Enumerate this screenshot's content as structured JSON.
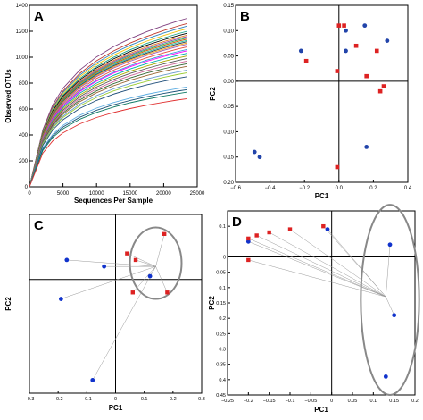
{
  "colors": {
    "blue_points": "#2244aa",
    "red_points": "#dd2222",
    "axis": "#000000",
    "ellipse": "#888888",
    "connector": "#999999"
  },
  "chart_data": [
    {
      "panel": "A",
      "type": "line",
      "xlabel": "Sequences Per Sample",
      "ylabel": "Observed OTUs",
      "xlim": [
        0,
        25000
      ],
      "ylim": [
        0,
        1400
      ],
      "xticks": [
        0,
        5000,
        10000,
        15000,
        20000,
        25000
      ],
      "yticks": [
        0,
        200,
        400,
        600,
        800,
        1000,
        1200,
        1400
      ],
      "grid": false,
      "series_shape": "rarefaction curves, ~30 samples, 0 to 23500 sequences",
      "series": [
        {
          "color": "#7f3f7f",
          "y_at_2000": 440,
          "y_end": 1300
        },
        {
          "color": "#c0392b",
          "y_at_2000": 430,
          "y_end": 1260
        },
        {
          "color": "#2e86c1",
          "y_at_2000": 425,
          "y_end": 1240
        },
        {
          "color": "#f1c40f",
          "y_at_2000": 420,
          "y_end": 1220
        },
        {
          "color": "#16a085",
          "y_at_2000": 415,
          "y_end": 1200
        },
        {
          "color": "#000000",
          "y_at_2000": 410,
          "y_end": 1185
        },
        {
          "color": "#e67e22",
          "y_at_2000": 405,
          "y_end": 1170
        },
        {
          "color": "#8e44ad",
          "y_at_2000": 400,
          "y_end": 1160
        },
        {
          "color": "#27ae60",
          "y_at_2000": 398,
          "y_end": 1150
        },
        {
          "color": "#d35400",
          "y_at_2000": 395,
          "y_end": 1140
        },
        {
          "color": "#1abc9c",
          "y_at_2000": 390,
          "y_end": 1130
        },
        {
          "color": "#2c3e50",
          "y_at_2000": 388,
          "y_end": 1120
        },
        {
          "color": "#f39c12",
          "y_at_2000": 385,
          "y_end": 1110
        },
        {
          "color": "#9b59b6",
          "y_at_2000": 380,
          "y_end": 1100
        },
        {
          "color": "#e74c3c",
          "y_at_2000": 375,
          "y_end": 1080
        },
        {
          "color": "#3498db",
          "y_at_2000": 372,
          "y_end": 1060
        },
        {
          "color": "#ff00ff",
          "y_at_2000": 370,
          "y_end": 1050
        },
        {
          "color": "#00aaaa",
          "y_at_2000": 365,
          "y_end": 1030
        },
        {
          "color": "#aaaa00",
          "y_at_2000": 360,
          "y_end": 1010
        },
        {
          "color": "#555555",
          "y_at_2000": 355,
          "y_end": 990
        },
        {
          "color": "#cc6699",
          "y_at_2000": 350,
          "y_end": 970
        },
        {
          "color": "#336633",
          "y_at_2000": 345,
          "y_end": 950
        },
        {
          "color": "#996633",
          "y_at_2000": 340,
          "y_end": 930
        },
        {
          "color": "#6699cc",
          "y_at_2000": 335,
          "y_end": 900
        },
        {
          "color": "#99cc33",
          "y_at_2000": 330,
          "y_end": 880
        },
        {
          "color": "#1f4e79",
          "y_at_2000": 320,
          "y_end": 850
        },
        {
          "color": "#5dade2",
          "y_at_2000": 300,
          "y_end": 770
        },
        {
          "color": "#1a5276",
          "y_at_2000": 290,
          "y_end": 750
        },
        {
          "color": "#117a65",
          "y_at_2000": 280,
          "y_end": 730
        },
        {
          "color": "#e03030",
          "y_at_2000": 260,
          "y_end": 680
        }
      ]
    },
    {
      "panel": "B",
      "type": "scatter",
      "xlabel": "PC1",
      "ylabel": "PC2",
      "xlim": [
        -0.6,
        0.4
      ],
      "ylim": [
        -0.2,
        0.15
      ],
      "xticks": [
        -0.6,
        -0.4,
        -0.2,
        0.0,
        0.2,
        0.4
      ],
      "xtick_labels": [
        "−0.6",
        "−0.4",
        "−0.2",
        "0.0",
        "0.2",
        "0.4"
      ],
      "yticks": [
        0.15,
        0.1,
        0.05,
        0.0,
        -0.05,
        -0.1,
        -0.15,
        -0.2
      ],
      "ytick_labels": [
        "0.15",
        "0.10",
        "0.05",
        "0.00",
        "0.05",
        "0.10",
        "0.15",
        "0.20"
      ],
      "series": [
        {
          "marker": "circle",
          "color": "#2244aa",
          "points": [
            [
              -0.22,
              0.06
            ],
            [
              0.04,
              0.1
            ],
            [
              0.15,
              0.11
            ],
            [
              0.28,
              0.08
            ],
            [
              0.04,
              0.06
            ],
            [
              -0.49,
              -0.14
            ],
            [
              -0.46,
              -0.15
            ],
            [
              0.16,
              -0.13
            ]
          ]
        },
        {
          "marker": "square",
          "color": "#dd2222",
          "points": [
            [
              0.0,
              0.11
            ],
            [
              0.03,
              0.11
            ],
            [
              0.1,
              0.07
            ],
            [
              0.22,
              0.06
            ],
            [
              -0.19,
              0.04
            ],
            [
              -0.01,
              0.02
            ],
            [
              0.16,
              0.01
            ],
            [
              0.26,
              -0.01
            ],
            [
              0.24,
              -0.02
            ],
            [
              -0.01,
              -0.17
            ]
          ]
        }
      ]
    },
    {
      "panel": "C",
      "type": "scatter",
      "xlabel": "PC1",
      "ylabel": "PC2",
      "xlim": [
        -0.3,
        0.3
      ],
      "ylim": [
        -0.35,
        0.2
      ],
      "xticks": [
        -0.3,
        -0.2,
        -0.1,
        0,
        0.1,
        0.2,
        0.3
      ],
      "xtick_labels": [
        "−0.3",
        "−0.2",
        "−0.1",
        "0",
        "0.1",
        "0.2",
        "0.3"
      ],
      "series": [
        {
          "marker": "circle",
          "color": "#1133cc",
          "points": [
            [
              -0.17,
              0.06
            ],
            [
              -0.19,
              -0.06
            ],
            [
              -0.04,
              0.04
            ],
            [
              0.12,
              0.01
            ],
            [
              -0.08,
              -0.31
            ]
          ]
        },
        {
          "marker": "square",
          "color": "#dd2222",
          "points": [
            [
              0.17,
              0.14
            ],
            [
              0.04,
              0.08
            ],
            [
              0.07,
              0.06
            ],
            [
              0.06,
              -0.04
            ],
            [
              0.18,
              -0.04
            ]
          ]
        }
      ],
      "ellipse": {
        "cx": 0.14,
        "cy": 0.05,
        "rx": 0.09,
        "ry": 0.11
      },
      "hub": [
        0.14,
        0.04
      ]
    },
    {
      "panel": "D",
      "type": "scatter",
      "xlabel": "PC1",
      "ylabel": "PC2",
      "xlim": [
        -0.25,
        0.2
      ],
      "ylim": [
        -0.45,
        0.15
      ],
      "xticks": [
        -0.25,
        -0.2,
        -0.15,
        -0.1,
        -0.05,
        0,
        0.05,
        0.1,
        0.15,
        0.2
      ],
      "xtick_labels": [
        "−0.25",
        "−0.2",
        "−0.15",
        "−0.1",
        "−0.05",
        "0",
        "0.05",
        "0.1",
        "0.15",
        "0.2"
      ],
      "yticks": [
        0.1,
        0,
        -0.05,
        -0.1,
        -0.15,
        -0.2,
        -0.25,
        -0.3,
        -0.35,
        -0.4,
        -0.45
      ],
      "ytick_labels": [
        "0.1",
        "0",
        "0.05",
        "0.1",
        "0.15",
        "0.2",
        "0.25",
        "0.3",
        "0.35",
        "0.4",
        "0.45"
      ],
      "series": [
        {
          "marker": "circle",
          "color": "#1133cc",
          "points": [
            [
              -0.2,
              0.05
            ],
            [
              -0.01,
              0.09
            ],
            [
              0.14,
              0.04
            ],
            [
              0.15,
              -0.19
            ],
            [
              0.13,
              -0.39
            ]
          ]
        },
        {
          "marker": "square",
          "color": "#dd2222",
          "points": [
            [
              -0.2,
              0.06
            ],
            [
              -0.18,
              0.07
            ],
            [
              -0.15,
              0.08
            ],
            [
              -0.1,
              0.09
            ],
            [
              -0.02,
              0.1
            ],
            [
              -0.2,
              -0.01
            ]
          ]
        }
      ],
      "ellipse": {
        "cx": 0.14,
        "cy": -0.14,
        "rx": 0.07,
        "ry": 0.31
      },
      "hub": [
        0.13,
        -0.13
      ]
    }
  ],
  "panel_labels": [
    "A",
    "B",
    "C",
    "D"
  ]
}
